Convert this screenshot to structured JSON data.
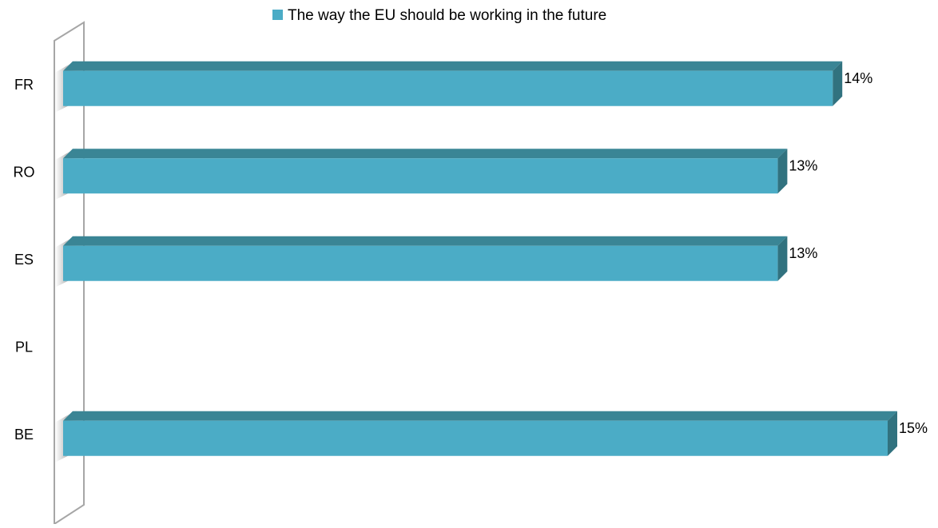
{
  "chart_data": {
    "type": "bar",
    "orientation": "horizontal",
    "style": "3d",
    "categories": [
      "FR",
      "RO",
      "ES",
      "PL",
      "BE"
    ],
    "series": [
      {
        "name": "The way the EU should be working in the future",
        "values": [
          0.14,
          0.13,
          0.13,
          null,
          0.15
        ],
        "labels": [
          "14%",
          "13%",
          "13%",
          "",
          "15%"
        ],
        "color": "#4bacc6"
      }
    ],
    "xlim": [
      0,
      0.15
    ],
    "legend": "top",
    "grid": false
  },
  "colors": {
    "bar_front": "#4bacc6",
    "bar_top": "#3a8595",
    "bar_side": "#31727f",
    "wall_stroke": "#a6a6a6",
    "text": "#000000"
  }
}
